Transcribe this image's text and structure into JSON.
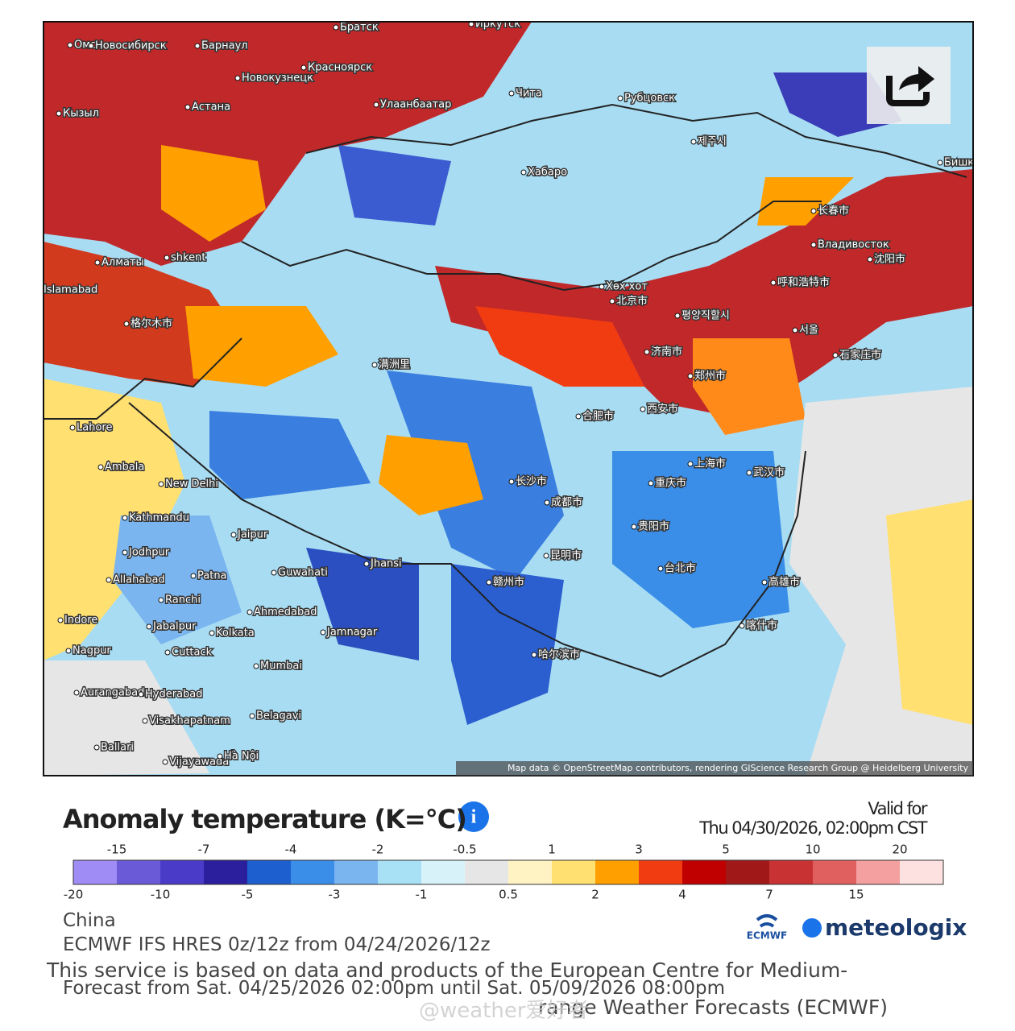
{
  "map": {
    "attribution": "Map data © OpenStreetMap contributors, rendering GIScience Research Group @ Heidelberg University",
    "labels": [
      "Омск",
      "Новосибирск",
      "Барнаул",
      "Новокузнецк",
      "Красноярск",
      "Братск",
      "Иркутск",
      "Чита",
      "Рубцовск",
      "Астана",
      "Кызыл",
      "Улаанбаатар",
      "Хабаро",
      "Бишкек",
      "Алматы",
      "shkent",
      "Islamabad",
      "Lahore",
      "Ambala",
      "New Delhi",
      "Kathmandu",
      "Jaipur",
      "Jodhpur",
      "Allahabad",
      "Patna",
      "Guwahati",
      "Jhansi",
      "Ranchi",
      "Ahmedabad",
      "Indore",
      "Jabalpur",
      "Kolkata",
      "Jamnagar",
      "Nagpur",
      "Cuttack",
      "Mumbai",
      "Aurangabad",
      "Hyderabad",
      "Visakhapatnam",
      "Belagavi",
      "Ballari",
      "Vijayawada",
      "Hà Nội",
      "哈尔滨市",
      "长春市",
      "Владивосток",
      "沈阳市",
      "呼和浩特市",
      "Хөх хот",
      "北京市",
      "평양직할시",
      "서울",
      "石家庄市",
      "济南市",
      "郑州市",
      "西安市",
      "合肥市",
      "上海市",
      "武汉市",
      "重庆市",
      "成都市",
      "长沙市",
      "贵阳市",
      "昆明市",
      "赣州市",
      "台北市",
      "高雄市",
      "喀什市",
      "格尔木市",
      "满洲里",
      "제주시"
    ]
  },
  "legend": {
    "title": "Anomaly temperature (K=°C)",
    "top_labels": [
      "-15",
      "-7",
      "-4",
      "-2",
      "-0.5",
      "1",
      "3",
      "5",
      "10",
      "20"
    ],
    "bottom_labels": [
      "-20",
      "-10",
      "-5",
      "-3",
      "-1",
      "0.5",
      "2",
      "4",
      "7",
      "15"
    ],
    "colors": [
      "#a08cf5",
      "#6a5ad8",
      "#4a3cc8",
      "#2b1f9e",
      "#1e5fcf",
      "#3a8ee8",
      "#7ab5f0",
      "#a8e0f5",
      "#d8f2fa",
      "#e6e6e6",
      "#fff3c4",
      "#ffe070",
      "#ffa000",
      "#f03c10",
      "#c00000",
      "#a01818",
      "#c83232",
      "#e06060",
      "#f4a0a0",
      "#fde0e0"
    ]
  },
  "valid": {
    "label": "Valid for",
    "time": "Thu 04/30/2026, 02:00pm CST"
  },
  "footer": {
    "region": "China",
    "model": "ECMWF IFS HRES 0z/12z from 04/24/2026/12z",
    "service": "This service is based on data and products of the European Centre for Medium-",
    "forecast": "Forecast from Sat. 04/25/2026 02:00pm until Sat. 05/09/2026 08:00pm",
    "service_end": "range Weather Forecasts (ECMWF)",
    "watermark": "@weather爱好者"
  },
  "logos": {
    "ecmwf": "ECMWF",
    "meteologix": "meteologix"
  }
}
